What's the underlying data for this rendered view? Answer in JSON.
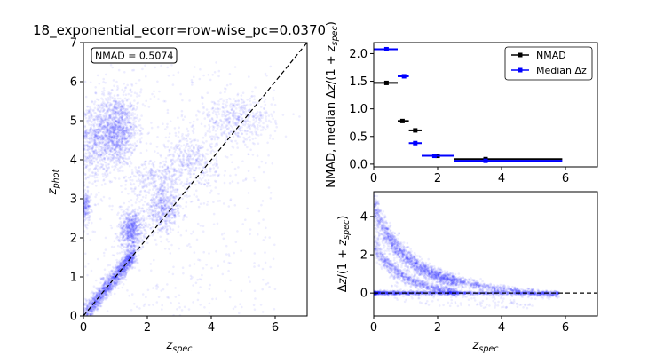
{
  "figure_title": "18_exponential_ecorr=row-wise_pc=0.0370",
  "chart_data": [
    {
      "type": "scatter",
      "panel": "zphot-vs-zspec",
      "xlabel": "z_spec",
      "ylabel": "z_phot",
      "xlim": [
        0,
        7
      ],
      "ylim": [
        0,
        7
      ],
      "xticks": [
        0,
        2,
        4,
        6
      ],
      "yticks": [
        0,
        1,
        2,
        3,
        4,
        5,
        6,
        7
      ],
      "annotation": "NMAD = 0.5074",
      "reference_line": {
        "style": "dashed",
        "color": "#000000",
        "x": [
          0,
          7
        ],
        "y": [
          0,
          7
        ]
      },
      "point_color": "#0000ff",
      "clusters": [
        {
          "cx": 1.0,
          "cy": 4.75,
          "sx": 0.35,
          "sy": 0.45,
          "n": 1400
        },
        {
          "cx": 0.2,
          "cy": 4.4,
          "sx": 0.3,
          "sy": 0.55,
          "n": 500
        },
        {
          "cx": 1.5,
          "cy": 2.2,
          "sx": 0.2,
          "sy": 0.25,
          "n": 700
        },
        {
          "cx": 2.5,
          "cy": 2.75,
          "sx": 0.3,
          "sy": 0.3,
          "n": 550
        },
        {
          "cx": 0.05,
          "cy": 2.8,
          "sx": 0.08,
          "sy": 0.2,
          "n": 250
        },
        {
          "cx": 3.4,
          "cy": 4.0,
          "sx": 0.4,
          "sy": 0.35,
          "n": 350
        },
        {
          "cx": 4.8,
          "cy": 5.0,
          "sx": 0.6,
          "sy": 0.3,
          "n": 450
        },
        {
          "cx": 2.3,
          "cy": 3.6,
          "sx": 0.5,
          "sy": 0.2,
          "n": 250
        }
      ],
      "diagonal_band": {
        "x_from": 0.0,
        "x_to": 1.6,
        "scatter": 0.12,
        "n": 1500
      }
    },
    {
      "type": "line",
      "panel": "nmad-and-median",
      "ylabel": "NMAD, median Δz/(1 + z_spec)",
      "xlim": [
        0,
        7
      ],
      "ylim": [
        -0.05,
        2.2
      ],
      "xticks": [
        0,
        2,
        4,
        6
      ],
      "yticks": [
        0.0,
        0.5,
        1.0,
        1.5,
        2.0
      ],
      "ytick_labels": [
        "0.0",
        "0.5",
        "1.0",
        "1.5",
        "2.0"
      ],
      "legend_position": "top-right",
      "series": [
        {
          "name": "NMAD",
          "color": "#000000",
          "points": [
            {
              "x": 0.4,
              "xerr": [
                0.0,
                0.75
              ],
              "y": 1.47
            },
            {
              "x": 0.9,
              "xerr": [
                0.75,
                1.1
              ],
              "y": 0.78
            },
            {
              "x": 1.3,
              "xerr": [
                1.1,
                1.5
              ],
              "y": 0.61
            },
            {
              "x": 2.0,
              "xerr": [
                1.5,
                2.5
              ],
              "y": 0.15
            },
            {
              "x": 3.5,
              "xerr": [
                2.5,
                5.9
              ],
              "y": 0.09
            }
          ]
        },
        {
          "name": "Median Δz",
          "color": "#0000ff",
          "points": [
            {
              "x": 0.4,
              "xerr": [
                0.0,
                0.75
              ],
              "y": 2.08
            },
            {
              "x": 0.95,
              "xerr": [
                0.75,
                1.1
              ],
              "y": 1.59
            },
            {
              "x": 1.3,
              "xerr": [
                1.1,
                1.5
              ],
              "y": 0.38
            },
            {
              "x": 1.9,
              "xerr": [
                1.5,
                2.5
              ],
              "y": 0.15
            },
            {
              "x": 3.5,
              "xerr": [
                2.5,
                5.9
              ],
              "y": 0.06
            }
          ]
        }
      ]
    },
    {
      "type": "scatter",
      "panel": "residuals",
      "xlabel": "z_spec",
      "ylabel": "Δz/(1 + z_spec)",
      "xlim": [
        0,
        7
      ],
      "ylim": [
        -1.2,
        5.3
      ],
      "xticks": [
        0,
        2,
        4,
        6
      ],
      "yticks": [
        0,
        2,
        4
      ],
      "reference_line": {
        "style": "dashed",
        "color": "#000000",
        "y": 0
      },
      "point_color": "#0000ff",
      "description_free_bands": [
        {
          "zphot": 4.75,
          "x_from": 0.0,
          "x_to": 2.6,
          "n": 1600,
          "spread": 0.25
        },
        {
          "zphot": 2.6,
          "x_from": 0.0,
          "x_to": 2.6,
          "n": 900,
          "spread": 0.15
        },
        {
          "zphot": 5.0,
          "x_from": 2.6,
          "x_to": 5.8,
          "n": 600,
          "spread": 0.2
        }
      ],
      "zero_band": {
        "x_from": 0.0,
        "x_to": 5.8,
        "n": 1500,
        "spread": 0.05
      }
    }
  ]
}
